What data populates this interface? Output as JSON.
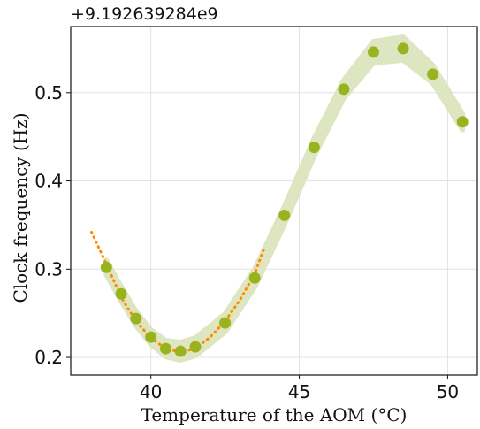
{
  "chart_data": {
    "type": "scatter",
    "xlabel": "Temperature of the AOM  (°C)",
    "ylabel": "Clock frequency (Hz)",
    "offset_text": "+9.192639284e9",
    "xlim": [
      37.3,
      51.0
    ],
    "ylim": [
      0.18,
      0.575
    ],
    "xticks": [
      40,
      45,
      50
    ],
    "yticks": [
      0.2,
      0.3,
      0.4,
      0.5
    ],
    "grid": true,
    "colors": {
      "points": "#99b31f",
      "band": "#dde6c0",
      "fit": "#ff8c00"
    },
    "series": [
      {
        "x": [
          38.5,
          39.0,
          39.5,
          40.0,
          40.5,
          41.0,
          41.5,
          42.5,
          43.5,
          44.5,
          45.5,
          46.5,
          47.5,
          48.5,
          49.5,
          50.5
        ],
        "y": [
          0.302,
          0.272,
          0.244,
          0.223,
          0.21,
          0.207,
          0.212,
          0.239,
          0.29,
          0.361,
          0.438,
          0.504,
          0.546,
          0.55,
          0.521,
          0.467
        ]
      }
    ],
    "band_halfwidth": [
      0.008,
      0.008,
      0.008,
      0.008,
      0.009,
      0.01,
      0.01,
      0.01,
      0.01,
      0.01,
      0.01,
      0.01,
      0.012,
      0.013,
      0.01,
      0.009
    ],
    "fit": {
      "x": [
        38.0,
        38.5,
        39.0,
        39.5,
        40.0,
        40.5,
        41.0,
        41.5,
        42.0,
        42.5,
        43.0,
        43.5,
        43.8
      ],
      "y": [
        0.342,
        0.306,
        0.268,
        0.241,
        0.222,
        0.21,
        0.206,
        0.21,
        0.223,
        0.241,
        0.265,
        0.295,
        0.322
      ]
    }
  }
}
